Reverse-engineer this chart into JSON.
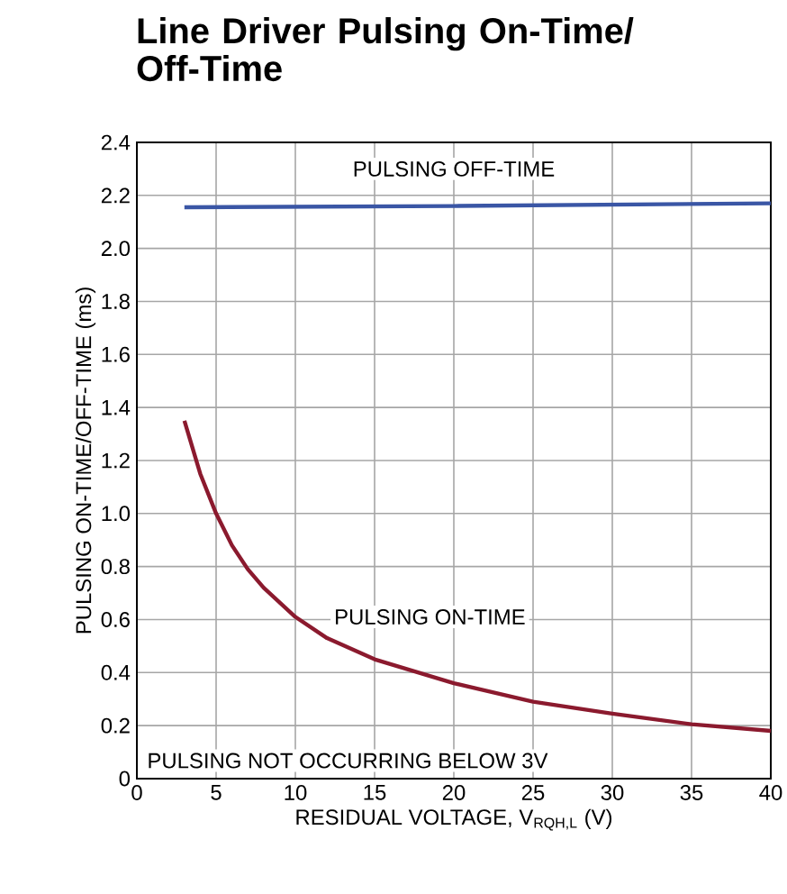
{
  "chart_data": {
    "type": "line",
    "title": "Line Driver Pulsing On-Time/ Off-Time",
    "xlabel": "RESIDUAL VOLTAGE, V$_{RQH,L}$ (V)",
    "ylabel": "PULSING ON-TIME/OFF-TIME (ms)",
    "xlim": [
      0,
      40
    ],
    "ylim": [
      0,
      2.4
    ],
    "xticks": [
      0,
      5,
      10,
      15,
      20,
      25,
      30,
      35,
      40
    ],
    "yticks": [
      0,
      0.2,
      0.4,
      0.6,
      0.8,
      {
        "value": 1.0,
        "label": "1.0"
      },
      1.2,
      1.4,
      1.6,
      1.8,
      {
        "value": 2.0,
        "label": "2.0"
      },
      2.2,
      2.4
    ],
    "grid": true,
    "annotations": [
      "PULSING NOT OCCURRING BELOW 3V"
    ],
    "series": [
      {
        "name": "PULSING OFF-TIME",
        "color": "#3a56a5",
        "x": [
          3,
          20,
          40
        ],
        "values": [
          2.155,
          2.16,
          2.17
        ]
      },
      {
        "name": "PULSING ON-TIME",
        "color": "#8b1a2e",
        "x": [
          3,
          4,
          5,
          6,
          7,
          8,
          10,
          12,
          15,
          20,
          25,
          30,
          35,
          40
        ],
        "values": [
          1.35,
          1.15,
          1.0,
          0.88,
          0.79,
          0.72,
          0.61,
          0.53,
          0.45,
          0.36,
          0.29,
          0.245,
          0.205,
          0.18
        ]
      }
    ]
  }
}
